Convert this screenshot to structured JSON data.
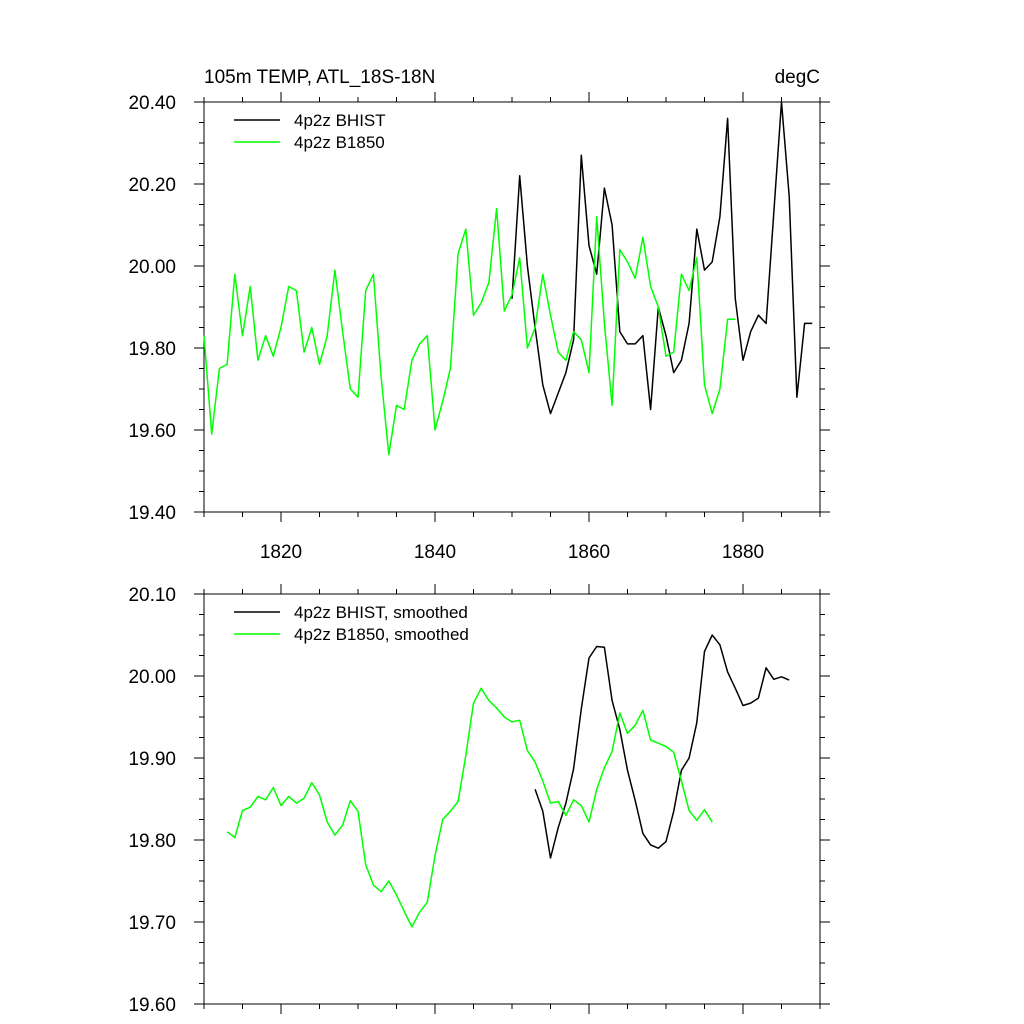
{
  "chart_data": [
    {
      "type": "line",
      "title": "105m TEMP, ATL_18S-18N",
      "units": "degC",
      "xlim": [
        1810,
        1890
      ],
      "ylim": [
        19.4,
        20.4
      ],
      "x_ticks": [
        1820,
        1840,
        1860,
        1880
      ],
      "x_tick_labels": [
        "1820",
        "1840",
        "1860",
        "1880"
      ],
      "y_ticks": [
        19.4,
        19.6,
        19.8,
        20.0,
        20.2,
        20.4
      ],
      "y_tick_labels": [
        "19.40",
        "19.60",
        "19.80",
        "20.00",
        "20.20",
        "20.40"
      ],
      "legend_position": "top-left",
      "series": [
        {
          "name": "4p2z BHIST",
          "color": "#000000",
          "x": [
            1850,
            1851,
            1852,
            1853,
            1854,
            1855,
            1856,
            1857,
            1858,
            1859,
            1860,
            1861,
            1862,
            1863,
            1864,
            1865,
            1866,
            1867,
            1868,
            1869,
            1870,
            1871,
            1872,
            1873,
            1874,
            1875,
            1876,
            1877,
            1878,
            1879,
            1880,
            1881,
            1882,
            1883,
            1884,
            1885,
            1886,
            1887,
            1888,
            1889
          ],
          "values": [
            19.92,
            20.22,
            20.0,
            19.85,
            19.71,
            19.64,
            19.69,
            19.74,
            19.82,
            20.27,
            20.05,
            19.98,
            20.19,
            20.1,
            19.84,
            19.81,
            19.81,
            19.83,
            19.65,
            19.9,
            19.83,
            19.74,
            19.77,
            19.86,
            20.09,
            19.99,
            20.01,
            20.12,
            20.36,
            19.92,
            19.77,
            19.84,
            19.88,
            19.86,
            20.13,
            20.4,
            20.17,
            19.68,
            19.86,
            19.86
          ]
        },
        {
          "name": "4p2z B1850",
          "color": "#00ff00",
          "x": [
            1810,
            1811,
            1812,
            1813,
            1814,
            1815,
            1816,
            1817,
            1818,
            1819,
            1820,
            1821,
            1822,
            1823,
            1824,
            1825,
            1826,
            1827,
            1828,
            1829,
            1830,
            1831,
            1832,
            1833,
            1834,
            1835,
            1836,
            1837,
            1838,
            1839,
            1840,
            1841,
            1842,
            1843,
            1844,
            1845,
            1846,
            1847,
            1848,
            1849,
            1850,
            1851,
            1852,
            1853,
            1854,
            1855,
            1856,
            1857,
            1858,
            1859,
            1860,
            1861,
            1862,
            1863,
            1864,
            1865,
            1866,
            1867,
            1868,
            1869,
            1870,
            1871,
            1872,
            1873,
            1874,
            1875,
            1876,
            1877,
            1878,
            1879
          ],
          "values": [
            19.83,
            19.59,
            19.75,
            19.76,
            19.98,
            19.83,
            19.95,
            19.77,
            19.83,
            19.78,
            19.85,
            19.95,
            19.94,
            19.79,
            19.85,
            19.76,
            19.83,
            19.99,
            19.84,
            19.7,
            19.68,
            19.94,
            19.98,
            19.73,
            19.54,
            19.66,
            19.65,
            19.77,
            19.81,
            19.83,
            19.6,
            19.67,
            19.75,
            20.03,
            20.09,
            19.88,
            19.91,
            19.96,
            20.14,
            19.89,
            19.93,
            20.02,
            19.8,
            19.85,
            19.98,
            19.88,
            19.79,
            19.77,
            19.84,
            19.82,
            19.74,
            20.12,
            19.86,
            19.66,
            20.04,
            20.01,
            19.97,
            20.07,
            19.95,
            19.9,
            19.78,
            19.79,
            19.98,
            19.94,
            20.02,
            19.71,
            19.64,
            19.7,
            19.87,
            19.87
          ]
        }
      ]
    },
    {
      "type": "line",
      "title": "",
      "xlim": [
        1810,
        1890
      ],
      "ylim": [
        19.6,
        20.1
      ],
      "x_ticks": [
        1820,
        1840,
        1860,
        1880
      ],
      "y_ticks": [
        19.6,
        19.7,
        19.8,
        19.9,
        20.0,
        20.1
      ],
      "y_tick_labels": [
        "19.60",
        "19.70",
        "19.80",
        "19.90",
        "20.00",
        "20.10"
      ],
      "legend_position": "top-left",
      "series": [
        {
          "name": "4p2z BHIST, smoothed",
          "color": "#000000",
          "x": [
            1853,
            1854,
            1855,
            1856,
            1857,
            1858,
            1859,
            1860,
            1861,
            1862,
            1863,
            1864,
            1865,
            1866,
            1867,
            1868,
            1869,
            1870,
            1871,
            1872,
            1873,
            1874,
            1875,
            1876,
            1877,
            1878,
            1879,
            1880,
            1881,
            1882,
            1883,
            1884,
            1885,
            1886
          ],
          "values": [
            19.862,
            19.835,
            19.778,
            19.815,
            19.845,
            19.887,
            19.96,
            20.022,
            20.036,
            20.035,
            19.97,
            19.935,
            19.885,
            19.848,
            19.808,
            19.794,
            19.79,
            19.798,
            19.835,
            19.885,
            19.9,
            19.943,
            20.03,
            20.05,
            20.038,
            20.005,
            19.985,
            19.964,
            19.967,
            19.973,
            20.01,
            19.996,
            19.999,
            19.995
          ]
        },
        {
          "name": "4p2z B1850, smoothed",
          "color": "#00ff00",
          "x": [
            1813,
            1814,
            1815,
            1816,
            1817,
            1818,
            1819,
            1820,
            1821,
            1822,
            1823,
            1824,
            1825,
            1826,
            1827,
            1828,
            1829,
            1830,
            1831,
            1832,
            1833,
            1834,
            1835,
            1836,
            1837,
            1838,
            1839,
            1840,
            1841,
            1842,
            1843,
            1844,
            1845,
            1846,
            1847,
            1848,
            1849,
            1850,
            1851,
            1852,
            1853,
            1854,
            1855,
            1856,
            1857,
            1858,
            1859,
            1860,
            1861,
            1862,
            1863,
            1864,
            1865,
            1866,
            1867,
            1868,
            1869,
            1870,
            1871,
            1872,
            1873,
            1874,
            1875,
            1876
          ],
          "values": [
            19.81,
            19.803,
            19.836,
            19.84,
            19.853,
            19.849,
            19.864,
            19.842,
            19.853,
            19.845,
            19.851,
            19.87,
            19.855,
            19.822,
            19.806,
            19.818,
            19.848,
            19.835,
            19.77,
            19.745,
            19.737,
            19.75,
            19.733,
            19.713,
            19.694,
            19.712,
            19.724,
            19.781,
            19.825,
            19.835,
            19.847,
            19.903,
            19.967,
            19.985,
            19.97,
            19.961,
            19.95,
            19.944,
            19.946,
            19.909,
            19.895,
            19.872,
            19.845,
            19.847,
            19.83,
            19.849,
            19.842,
            19.822,
            19.862,
            19.888,
            19.908,
            19.955,
            19.93,
            19.94,
            19.958,
            19.922,
            19.918,
            19.914,
            19.907,
            19.872,
            19.836,
            19.824,
            19.837,
            19.822
          ]
        }
      ]
    }
  ]
}
